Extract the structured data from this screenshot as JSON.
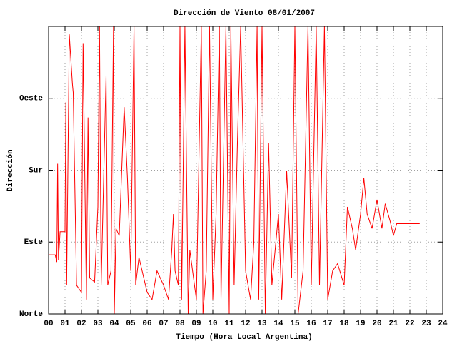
{
  "chart_data": {
    "type": "line",
    "title": "Dirección de Viento 08/01/2007",
    "xlabel": "Tiempo (Hora Local Argentina)",
    "ylabel": "Dirección",
    "color": "#ff0000",
    "grid": true,
    "xlim": [
      0,
      24
    ],
    "ylim": [
      0,
      360
    ],
    "xticks": [
      {
        "value": 0,
        "label": "00"
      },
      {
        "value": 1,
        "label": "01"
      },
      {
        "value": 2,
        "label": "02"
      },
      {
        "value": 3,
        "label": "03"
      },
      {
        "value": 4,
        "label": "04"
      },
      {
        "value": 5,
        "label": "05"
      },
      {
        "value": 6,
        "label": "06"
      },
      {
        "value": 7,
        "label": "07"
      },
      {
        "value": 8,
        "label": "08"
      },
      {
        "value": 9,
        "label": "09"
      },
      {
        "value": 10,
        "label": "10"
      },
      {
        "value": 11,
        "label": "11"
      },
      {
        "value": 12,
        "label": "12"
      },
      {
        "value": 13,
        "label": "13"
      },
      {
        "value": 14,
        "label": "14"
      },
      {
        "value": 15,
        "label": "15"
      },
      {
        "value": 16,
        "label": "16"
      },
      {
        "value": 17,
        "label": "17"
      },
      {
        "value": 18,
        "label": "18"
      },
      {
        "value": 19,
        "label": "19"
      },
      {
        "value": 20,
        "label": "20"
      },
      {
        "value": 21,
        "label": "21"
      },
      {
        "value": 22,
        "label": "22"
      },
      {
        "value": 23,
        "label": "23"
      },
      {
        "value": 24,
        "label": "24"
      }
    ],
    "yticks": [
      {
        "value": 0,
        "label": "Norte"
      },
      {
        "value": 90,
        "label": "Este"
      },
      {
        "value": 180,
        "label": "Sur"
      },
      {
        "value": 270,
        "label": "Oeste"
      }
    ],
    "x": [
      0,
      0.4,
      0.5,
      0.55,
      0.6,
      0.7,
      1.0,
      1.05,
      1.1,
      1.26,
      1.45,
      1.5,
      1.7,
      2.0,
      2.1,
      2.3,
      2.4,
      2.5,
      2.8,
      3.0,
      3.1,
      3.2,
      3.5,
      3.6,
      3.8,
      3.95,
      4.0,
      4.1,
      4.3,
      4.6,
      4.8,
      5.0,
      5.2,
      5.3,
      5.5,
      6.0,
      6.3,
      6.6,
      7.0,
      7.3,
      7.5,
      7.6,
      7.7,
      7.9,
      8.0,
      8.1,
      8.3,
      8.5,
      8.6,
      9.0,
      9.3,
      9.4,
      9.6,
      9.8,
      10.0,
      10.2,
      10.4,
      10.5,
      10.8,
      11.0,
      11.1,
      11.3,
      11.5,
      11.7,
      12.0,
      12.3,
      12.5,
      12.7,
      12.8,
      13.0,
      13.2,
      13.4,
      13.6,
      14.0,
      14.2,
      14.5,
      14.8,
      15.0,
      15.2,
      15.5,
      15.8,
      16.0,
      16.3,
      16.5,
      16.8,
      17.0,
      17.3,
      17.6,
      18.0,
      18.2,
      18.5,
      18.7,
      19.0,
      19.2,
      19.4,
      19.7,
      20.0,
      20.3,
      20.5,
      20.8,
      21.0,
      21.2,
      22.0,
      22.6
    ],
    "values": [
      74,
      74,
      65,
      188,
      67,
      103,
      103,
      265,
      36,
      350,
      288,
      277,
      36,
      27,
      339,
      18,
      246,
      45,
      40,
      134,
      360,
      36,
      299,
      36,
      54,
      360,
      0,
      107,
      98,
      259,
      170,
      54,
      360,
      36,
      71,
      27,
      18,
      54,
      36,
      18,
      80,
      125,
      54,
      36,
      360,
      18,
      360,
      0,
      80,
      18,
      360,
      0,
      54,
      360,
      18,
      125,
      360,
      18,
      360,
      0,
      360,
      36,
      214,
      360,
      54,
      18,
      89,
      360,
      18,
      360,
      0,
      214,
      36,
      125,
      18,
      179,
      45,
      360,
      0,
      54,
      360,
      36,
      360,
      36,
      360,
      18,
      54,
      63,
      36,
      134,
      107,
      80,
      125,
      170,
      125,
      107,
      143,
      107,
      138,
      116,
      98,
      113,
      113,
      113
    ]
  }
}
